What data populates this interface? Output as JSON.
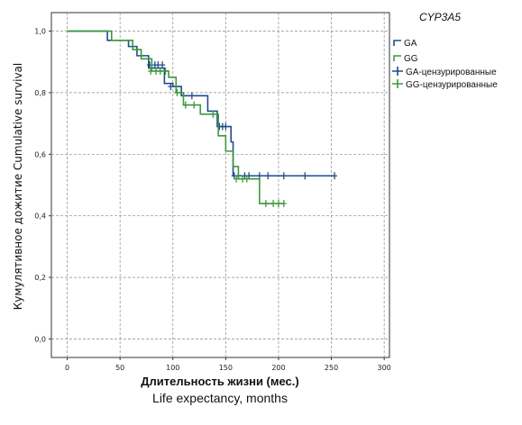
{
  "chart_data": {
    "type": "line",
    "subtype": "kaplan-meier",
    "xlabel": "Длительность жизни (мес.)",
    "xlabel2": "Life expectancy, months",
    "ylabel": "Кумулятивное дожитие Cumulative survival",
    "xlim": [
      -15,
      305
    ],
    "ylim": [
      -0.06,
      1.06
    ],
    "x_ticks": [
      0,
      50,
      100,
      150,
      200,
      250,
      300
    ],
    "y_ticks": [
      0.0,
      0.2,
      0.4,
      0.6,
      0.8,
      1.0
    ],
    "y_tick_labels": [
      "0,0",
      "0,2",
      "0,4",
      "0,6",
      "0,8",
      "1,0"
    ],
    "grid": true,
    "legend": {
      "title": "CYP3A5",
      "position": "right",
      "entries": [
        "GA",
        "GG",
        "GA-цензурированные",
        "GG-цензурированные"
      ]
    },
    "series": [
      {
        "name": "GA",
        "color": "#1f4e8c",
        "steps": [
          [
            0,
            1.0
          ],
          [
            38,
            0.97
          ],
          [
            58,
            0.95
          ],
          [
            66,
            0.92
          ],
          [
            77,
            0.88
          ],
          [
            92,
            0.83
          ],
          [
            100,
            0.82
          ],
          [
            108,
            0.79
          ],
          [
            133,
            0.74
          ],
          [
            142,
            0.69
          ],
          [
            155,
            0.64
          ],
          [
            157,
            0.53
          ],
          [
            253,
            0.53
          ]
        ],
        "censored": [
          [
            78,
            0.89
          ],
          [
            83,
            0.89
          ],
          [
            86,
            0.89
          ],
          [
            90,
            0.89
          ],
          [
            98,
            0.82
          ],
          [
            118,
            0.79
          ],
          [
            144,
            0.69
          ],
          [
            147,
            0.69
          ],
          [
            150,
            0.69
          ],
          [
            158,
            0.53
          ],
          [
            162,
            0.53
          ],
          [
            168,
            0.53
          ],
          [
            172,
            0.53
          ],
          [
            182,
            0.53
          ],
          [
            190,
            0.53
          ],
          [
            205,
            0.53
          ],
          [
            225,
            0.53
          ],
          [
            253,
            0.53
          ]
        ]
      },
      {
        "name": "GG",
        "color": "#3c9a3c",
        "steps": [
          [
            0,
            1.0
          ],
          [
            42,
            0.97
          ],
          [
            62,
            0.94
          ],
          [
            70,
            0.91
          ],
          [
            80,
            0.87
          ],
          [
            96,
            0.85
          ],
          [
            103,
            0.8
          ],
          [
            110,
            0.76
          ],
          [
            126,
            0.73
          ],
          [
            143,
            0.66
          ],
          [
            150,
            0.61
          ],
          [
            157,
            0.56
          ],
          [
            162,
            0.52
          ],
          [
            175,
            0.52
          ],
          [
            182,
            0.44
          ],
          [
            205,
            0.44
          ]
        ],
        "censored": [
          [
            79,
            0.87
          ],
          [
            84,
            0.87
          ],
          [
            88,
            0.87
          ],
          [
            93,
            0.87
          ],
          [
            104,
            0.8
          ],
          [
            112,
            0.76
          ],
          [
            120,
            0.76
          ],
          [
            138,
            0.73
          ],
          [
            160,
            0.52
          ],
          [
            166,
            0.52
          ],
          [
            170,
            0.52
          ],
          [
            188,
            0.44
          ],
          [
            195,
            0.44
          ],
          [
            200,
            0.44
          ],
          [
            205,
            0.44
          ]
        ]
      }
    ]
  }
}
